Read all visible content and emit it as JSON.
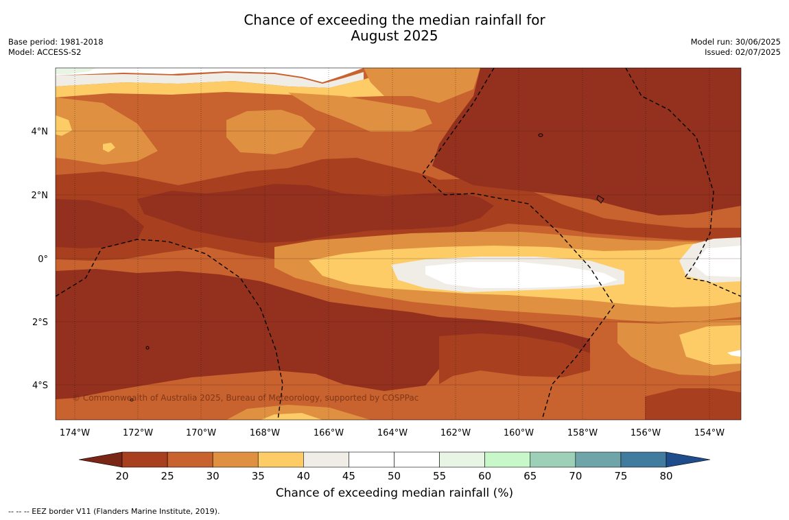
{
  "header": {
    "title_line1": "Chance of exceeding the median rainfall for",
    "title_line2": "August 2025",
    "base_period": "Base period: 1981-2018",
    "model": "Model: ACCESS-S2",
    "model_run": "Model run: 30/06/2025",
    "issued": "Issued: 02/07/2025"
  },
  "map": {
    "lat_labels": [
      "4°N",
      "2°N",
      "0°",
      "2°S",
      "4°S"
    ],
    "lon_labels": [
      "174°W",
      "172°W",
      "170°W",
      "168°W",
      "166°W",
      "164°W",
      "162°W",
      "160°W",
      "158°W",
      "156°W",
      "154°W"
    ],
    "copyright": "© Commonwealth of Australia 2025, Bureau of Meteorology, supported by COSPPac"
  },
  "colorbar": {
    "ticks": [
      "20",
      "25",
      "30",
      "35",
      "40",
      "45",
      "50",
      "55",
      "60",
      "65",
      "70",
      "75",
      "80"
    ],
    "colors": [
      "#7a2617",
      "#a8401f",
      "#c8622e",
      "#df9040",
      "#fdcc66",
      "#f0ece6",
      "#ffffff",
      "#ffffff",
      "#e8f5e4",
      "#c8f7c9",
      "#9dd0b7",
      "#6fa5a8",
      "#417b9e",
      "#1f4c8a"
    ],
    "label": "Chance of exceeding median rainfall (%)"
  },
  "footer": {
    "note": "--  --  -- EEZ border V11 (Flanders Marine Institute, 2019)."
  }
}
